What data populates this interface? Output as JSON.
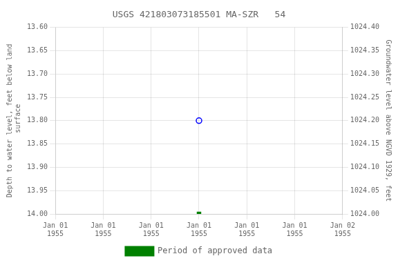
{
  "chart_data": {
    "type": "scatter",
    "title": "USGS 421803073185501 MA-SZR   54",
    "y_label": "Depth to water level, feet below land\n surface",
    "y2_label": "Groundwater level above NGVD 1929, feet",
    "categories": [
      "Jan 01\n1955",
      "Jan 01\n1955",
      "Jan 01\n1955",
      "Jan 01\n1955",
      "Jan 01\n1955",
      "Jan 01\n1955",
      "Jan 02\n1955"
    ],
    "series": [
      {
        "color": "#0000ff",
        "marker": "circle",
        "values": [
          null,
          null,
          null,
          13.8,
          null,
          null,
          null
        ]
      },
      {
        "name": "Period of approved data",
        "color": "#008000",
        "marker": "square",
        "values": [
          null,
          null,
          null,
          14.0,
          null,
          null,
          null
        ]
      }
    ],
    "ylim": [
      14.0,
      13.6
    ],
    "yticks": [
      {
        "value": 13.6,
        "label": "13.60"
      },
      13.65,
      {
        "value": 13.7,
        "label": "13.70"
      },
      13.75,
      {
        "value": 13.8,
        "label": "13.80"
      },
      13.85,
      {
        "value": 13.9,
        "label": "13.90"
      },
      13.95,
      {
        "value": 14.0,
        "label": "14.00"
      }
    ],
    "y2lim": [
      1024.0,
      1024.4
    ],
    "y2ticks": [
      {
        "value": 1024.4,
        "label": "1024.40"
      },
      1024.35,
      {
        "value": 1024.3,
        "label": "1024.30"
      },
      1024.25,
      {
        "value": 1024.2,
        "label": "1024.20"
      },
      1024.15,
      {
        "value": 1024.1,
        "label": "1024.10"
      },
      1024.05,
      {
        "value": 1024.0,
        "label": "1024.00"
      }
    ],
    "grid": true,
    "legend": "bottom"
  }
}
